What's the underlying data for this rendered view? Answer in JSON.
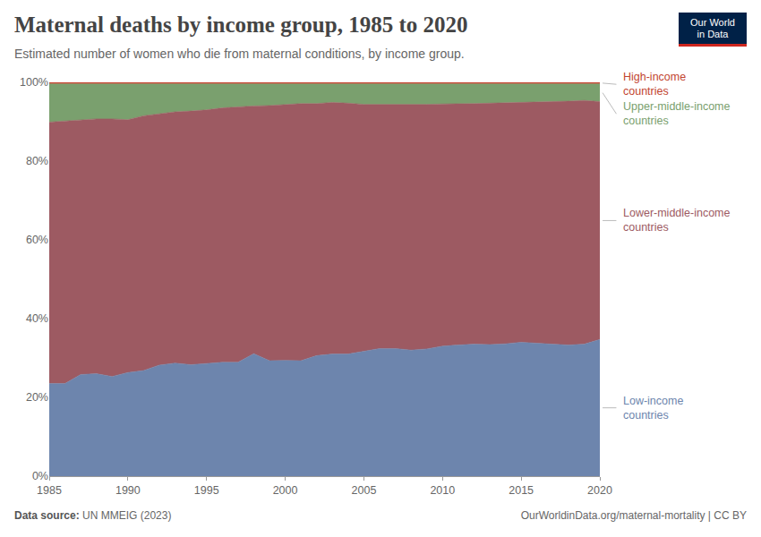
{
  "chart_data": {
    "type": "area",
    "stacked": true,
    "title": "Maternal deaths by income group, 1985 to 2020",
    "subtitle": "Estimated number of women who die from maternal conditions, by income group.",
    "source_label": "Data source:",
    "source": "UN MMEIG (2023)",
    "credit": "OurWorldinData.org/maternal-mortality | CC BY",
    "logo": "Our World in Data",
    "x": [
      1985,
      1986,
      1987,
      1988,
      1989,
      1990,
      1991,
      1992,
      1993,
      1994,
      1995,
      1996,
      1997,
      1998,
      1999,
      2000,
      2001,
      2002,
      2003,
      2004,
      2005,
      2006,
      2007,
      2008,
      2009,
      2010,
      2011,
      2012,
      2013,
      2014,
      2015,
      2016,
      2017,
      2018,
      2019,
      2020
    ],
    "series": [
      {
        "name": "Low-income countries",
        "color": "#6d85ad",
        "values": [
          23.5,
          23.5,
          25.8,
          26,
          25.3,
          26.3,
          26.8,
          28.2,
          28.7,
          28.3,
          28.6,
          28.9,
          28.9,
          31.1,
          29.3,
          29.4,
          29.3,
          30.6,
          31,
          31,
          31.7,
          32.4,
          32.4,
          32,
          32.3,
          33,
          33.3,
          33.5,
          33.4,
          33.6,
          34,
          33.7,
          33.5,
          33.3,
          33.5,
          34.7
        ]
      },
      {
        "name": "Lower-middle-income countries",
        "color": "#9d5a62",
        "values": [
          66.4,
          66.7,
          64.7,
          64.7,
          65.4,
          64.2,
          64.7,
          63.8,
          63.8,
          64.4,
          64.4,
          64.6,
          64.9,
          62.9,
          64.8,
          64.9,
          65.3,
          64,
          63.9,
          63.7,
          62.7,
          62,
          62,
          62.3,
          62.1,
          61.5,
          61.2,
          61.1,
          61.3,
          61.2,
          60.8,
          61.2,
          61.5,
          61.9,
          61.9,
          60.4
        ]
      },
      {
        "name": "Upper-middle-income countries",
        "color": "#7aa06e",
        "values": [
          9.7,
          9.4,
          9.1,
          8.9,
          8.9,
          9.1,
          8.1,
          7.6,
          7.1,
          6.9,
          6.6,
          6.1,
          5.8,
          5.6,
          5.5,
          5.3,
          5,
          5,
          4.7,
          4.9,
          5.2,
          5.2,
          5.2,
          5.3,
          5.2,
          5.1,
          5.1,
          5,
          4.9,
          4.8,
          4.8,
          4.7,
          4.6,
          4.4,
          4.2,
          4.5
        ]
      },
      {
        "name": "High-income countries",
        "color": "#c2452f",
        "values": [
          0.4,
          0.4,
          0.4,
          0.4,
          0.4,
          0.4,
          0.4,
          0.4,
          0.4,
          0.4,
          0.4,
          0.4,
          0.4,
          0.4,
          0.4,
          0.4,
          0.4,
          0.4,
          0.4,
          0.4,
          0.4,
          0.4,
          0.4,
          0.4,
          0.4,
          0.4,
          0.4,
          0.4,
          0.4,
          0.4,
          0.4,
          0.4,
          0.4,
          0.4,
          0.4,
          0.4
        ]
      }
    ],
    "xlim": [
      1985,
      2020
    ],
    "xticks": [
      1985,
      1990,
      1995,
      2000,
      2005,
      2010,
      2015,
      2020
    ],
    "ylim": [
      0,
      100
    ],
    "yticks": [
      {
        "value": 0,
        "label": "0%"
      },
      {
        "value": 20,
        "label": "20%"
      },
      {
        "value": 40,
        "label": "40%"
      },
      {
        "value": 60,
        "label": "60%"
      },
      {
        "value": 80,
        "label": "80%"
      },
      {
        "value": 100,
        "label": "100%"
      }
    ],
    "grid": true
  }
}
